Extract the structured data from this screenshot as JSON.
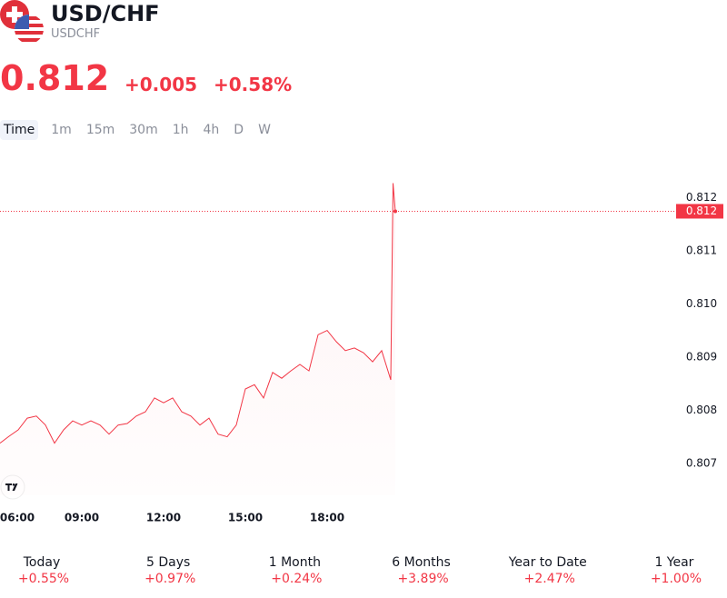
{
  "header": {
    "symbol": "USD/CHF",
    "ticker": "USDCHF",
    "price": "0.812",
    "change": "+0.005",
    "change_pct": "+0.58%"
  },
  "timeframes": [
    "Time",
    "1m",
    "15m",
    "30m",
    "1h",
    "4h",
    "D",
    "W"
  ],
  "chart_data": {
    "type": "line",
    "color": "#f23645",
    "x": [
      "06:00",
      "06:20",
      "06:40",
      "07:00",
      "07:20",
      "07:40",
      "08:00",
      "08:20",
      "08:40",
      "09:00",
      "09:20",
      "09:40",
      "10:00",
      "10:20",
      "10:40",
      "11:00",
      "11:20",
      "11:40",
      "12:00",
      "12:20",
      "12:40",
      "13:00",
      "13:20",
      "13:40",
      "14:00",
      "14:20",
      "14:40",
      "15:00",
      "15:20",
      "15:40",
      "16:00",
      "16:20",
      "16:40",
      "17:00",
      "17:20",
      "17:40",
      "18:00",
      "18:20",
      "18:40",
      "19:00",
      "19:20",
      "19:40",
      "20:00",
      "20:20",
      "20:25",
      "20:30"
    ],
    "values": [
      0.80738,
      0.80751,
      0.80763,
      0.80785,
      0.80789,
      0.80772,
      0.80738,
      0.80763,
      0.8078,
      0.80772,
      0.8078,
      0.80772,
      0.80755,
      0.80772,
      0.80775,
      0.80789,
      0.80797,
      0.80823,
      0.80814,
      0.80823,
      0.80797,
      0.80789,
      0.80772,
      0.80785,
      0.80755,
      0.8075,
      0.80772,
      0.8084,
      0.80848,
      0.80823,
      0.80871,
      0.8086,
      0.80874,
      0.80886,
      0.80874,
      0.80942,
      0.8095,
      0.80929,
      0.80912,
      0.80917,
      0.80908,
      0.80891,
      0.80912,
      0.80857,
      0.81227,
      0.81174
    ],
    "last_value_label": "0.812",
    "xlim": [
      "06:00",
      "24:00"
    ],
    "xticks": [
      "06:00",
      "09:00",
      "12:00",
      "15:00",
      "18:00"
    ],
    "ylim": [
      0.8064,
      0.8125
    ],
    "yticks": [
      0.807,
      0.808,
      0.809,
      {
        "value": 0.81,
        "label": "0.810"
      },
      0.811,
      0.812
    ]
  },
  "performance": [
    {
      "period": "Today",
      "change": "+0.55%"
    },
    {
      "period": "5 Days",
      "change": "+0.97%"
    },
    {
      "period": "1 Month",
      "change": "+0.24%"
    },
    {
      "period": "6 Months",
      "change": "+3.89%"
    },
    {
      "period": "Year to Date",
      "change": "+2.47%"
    },
    {
      "period": "1 Year",
      "change": "+1.00%"
    }
  ]
}
